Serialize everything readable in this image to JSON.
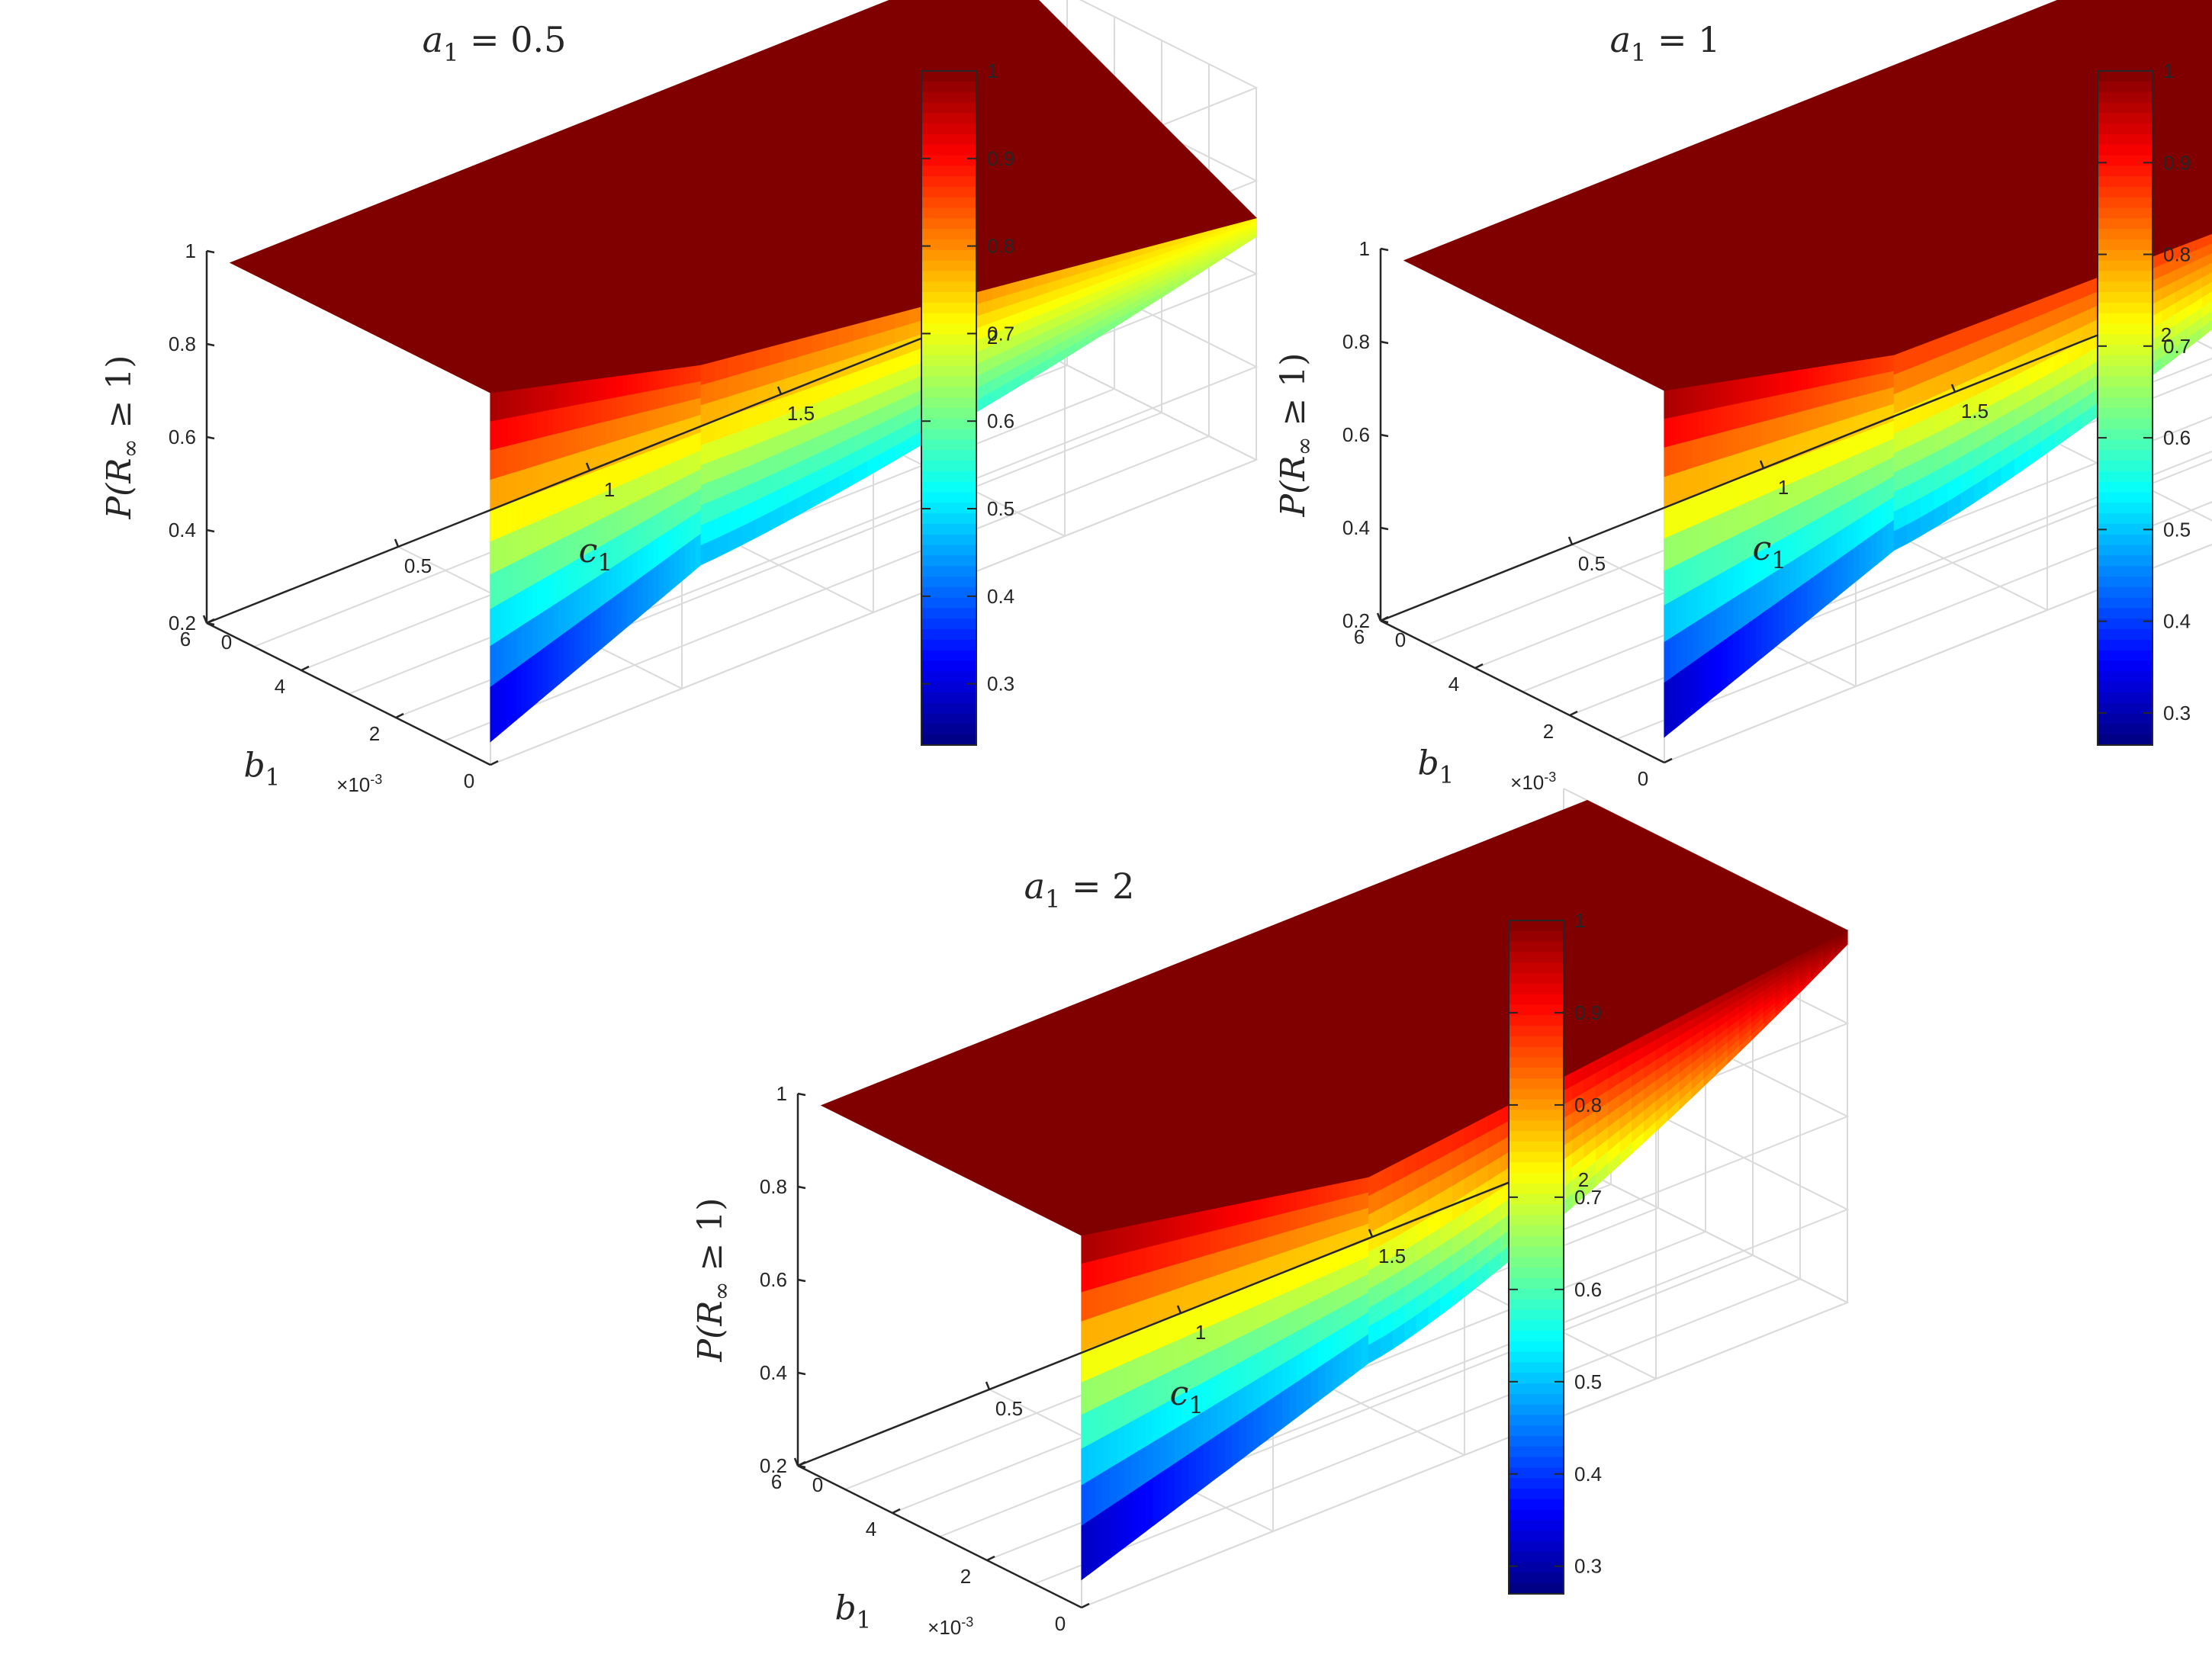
{
  "chart_data": [
    {
      "type": "surface",
      "title": "a₁ = 0.5",
      "title_var": "a",
      "title_sub": "1",
      "title_val": " = 0.5",
      "a1": 0.5,
      "zlabel": "P(R∞ ≥ 1)",
      "zlabel_parts": {
        "P": "P(",
        "R": "R",
        "inf": "∞",
        "rest": " ≥ 1)"
      },
      "xlabel": "b₁",
      "xlabel_var": "b",
      "xlabel_sub": "1",
      "ylabel": "c₁",
      "ylabel_var": "c",
      "ylabel_sub": "1",
      "x_exponent_label": "×10⁻³",
      "x_exp_base": "×10",
      "x_exp_pow": "-3",
      "x_ticks": [
        "0",
        "2",
        "4",
        "6"
      ],
      "x_scale": 0.001,
      "xlim": [
        0,
        0.006
      ],
      "y_ticks": [
        "0",
        "0.5",
        "1",
        "1.5",
        "2"
      ],
      "ylim": [
        0,
        2
      ],
      "z_ticks": [
        "0.2",
        "0.4",
        "0.6",
        "0.8",
        "1"
      ],
      "zlim": [
        0.2,
        1
      ],
      "colorbar_ticks": [
        "1",
        "0.9",
        "0.8",
        "0.7",
        "0.6",
        "0.5",
        "0.4",
        "0.3"
      ],
      "colorbar_range": [
        0.23,
        1
      ],
      "colormap": "jet",
      "grid": true,
      "surface": {
        "c_break": 0.55,
        "c_end": 2.0,
        "b_end": 0.0055,
        "z_low_at_b0": 0.25,
        "z_low_at_cbreak": 0.45,
        "z_low_at_cend": 0.68,
        "z_high": 1.0,
        "z_high_edge_at_cend": 0.72,
        "z_high_edge_at_bend": 1.0
      }
    },
    {
      "type": "surface",
      "title": "a₁ = 1",
      "title_var": "a",
      "title_sub": "1",
      "title_val": " = 1",
      "a1": 1,
      "zlabel": "P(R∞ ≥ 1)",
      "zlabel_parts": {
        "P": "P(",
        "R": "R",
        "inf": "∞",
        "rest": " ≥ 1)"
      },
      "xlabel": "b₁",
      "xlabel_var": "b",
      "xlabel_sub": "1",
      "ylabel": "c₁",
      "ylabel_var": "c",
      "ylabel_sub": "1",
      "x_exponent_label": "×10⁻³",
      "x_exp_base": "×10",
      "x_exp_pow": "-3",
      "x_ticks": [
        "0",
        "2",
        "4",
        "6"
      ],
      "x_scale": 0.001,
      "xlim": [
        0,
        0.006
      ],
      "y_ticks": [
        "0",
        "0.5",
        "1",
        "1.5",
        "2"
      ],
      "ylim": [
        0,
        2
      ],
      "z_ticks": [
        "0.2",
        "0.4",
        "0.6",
        "0.8",
        "1"
      ],
      "zlim": [
        0.2,
        1
      ],
      "colorbar_ticks": [
        "1",
        "0.9",
        "0.8",
        "0.7",
        "0.6",
        "0.5",
        "0.4",
        "0.3"
      ],
      "colorbar_range": [
        0.265,
        1
      ],
      "colormap": "jet",
      "grid": true,
      "surface": {
        "c_break": 0.6,
        "c_end": 2.0,
        "b_end": 0.0055,
        "z_low_at_b0": 0.255,
        "z_low_at_cbreak": 0.46,
        "z_low_at_cend": 0.86,
        "z_high": 1.0,
        "z_high_edge_at_cend": 0.86,
        "z_high_edge_at_bend": 1.0
      }
    },
    {
      "type": "surface",
      "title": "a₁ = 2",
      "title_var": "a",
      "title_sub": "1",
      "title_val": " = 2",
      "a1": 2,
      "zlabel": "P(R∞ ≥ 1)",
      "zlabel_parts": {
        "P": "P(",
        "R": "R",
        "inf": "∞",
        "rest": " ≥ 1)"
      },
      "xlabel": "b₁",
      "xlabel_var": "b",
      "xlabel_sub": "1",
      "ylabel": "c₁",
      "ylabel_var": "c",
      "ylabel_sub": "1",
      "x_exponent_label": "×10⁻³",
      "x_exp_base": "×10",
      "x_exp_pow": "-3",
      "x_ticks": [
        "0",
        "2",
        "4",
        "6"
      ],
      "x_scale": 0.001,
      "xlim": [
        0,
        0.006
      ],
      "y_ticks": [
        "0",
        "0.5",
        "1",
        "1.5",
        "2"
      ],
      "ylim": [
        0,
        2
      ],
      "z_ticks": [
        "0.2",
        "0.4",
        "0.6",
        "0.8",
        "1"
      ],
      "zlim": [
        0.2,
        1
      ],
      "colorbar_ticks": [
        "1",
        "0.9",
        "0.8",
        "0.7",
        "0.6",
        "0.5",
        "0.4",
        "0.3"
      ],
      "colorbar_range": [
        0.27,
        1
      ],
      "colormap": "jet",
      "grid": true,
      "surface": {
        "c_break": 0.75,
        "c_end": 2.0,
        "b_end": 0.0055,
        "z_low_at_b0": 0.26,
        "z_low_at_cbreak": 0.48,
        "z_low_at_cend": 0.97,
        "z_high": 1.0,
        "z_high_edge_at_cend": 1.0,
        "z_high_edge_at_bend": 1.0
      }
    }
  ]
}
